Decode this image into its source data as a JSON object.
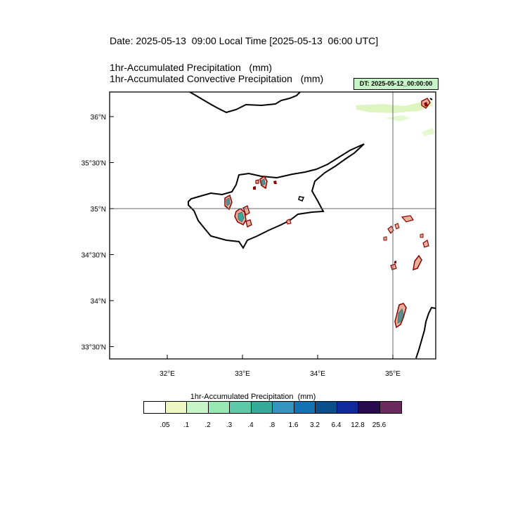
{
  "header": {
    "date_line": "Date: 2025-05-13  09:00 Local Time [2025-05-13  06:00 UTC]",
    "title_1": "1hr-Accumulated Precipitation   (mm)",
    "title_2": "1hr-Accumulated Convective Precipitation   (mm)",
    "dt_badge": "DT: 2025-05-12_00:00:00"
  },
  "map": {
    "lon_range": [
      31.15,
      35.55
    ],
    "lat_range": [
      33.28,
      35.55
    ],
    "lon_ticks": [
      {
        "value": 32,
        "label": "32°E"
      },
      {
        "value": 33,
        "label": "33°E"
      },
      {
        "value": 34,
        "label": "34°E"
      },
      {
        "value": 35,
        "label": "35°E"
      }
    ],
    "lat_ticks": [
      {
        "value": 36.0,
        "label": "36°N"
      },
      {
        "value": 35.5,
        "label": "35°30'N"
      },
      {
        "value": 35.0,
        "label": "35°N"
      },
      {
        "value": 34.5,
        "label": "34°30'N"
      },
      {
        "value": 34.0,
        "label": "34°N"
      },
      {
        "value": 33.5,
        "label": "33°30'N"
      }
    ],
    "reference_lines": {
      "lon": 35.0,
      "lat": 35.0
    },
    "colors": {
      "coastline": "#000000",
      "convective_outline": "#8b0000",
      "convective_fill": "#e8b09a",
      "light_precip": "#dff5c0"
    }
  },
  "colorbar": {
    "title": "1hr-Accumulated Precipitation  (mm)",
    "colors": [
      "#ffffff",
      "#eef7c2",
      "#c8f5c8",
      "#98e8b4",
      "#5ccaa8",
      "#35aa9b",
      "#3595bf",
      "#1372b3",
      "#0a4f8c",
      "#0f2a9c",
      "#2a0a4e",
      "#6b2a5e"
    ],
    "labels": [
      ".05",
      ".1",
      ".2",
      ".3",
      ".4",
      ".8",
      "1.6",
      "3.2",
      "6.4",
      "12.8",
      "25.6"
    ]
  }
}
